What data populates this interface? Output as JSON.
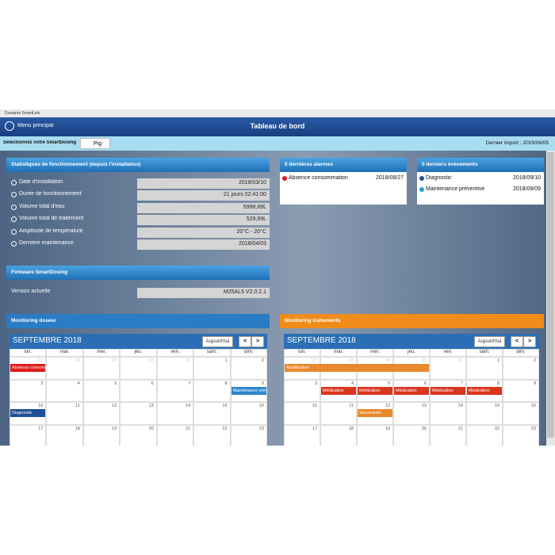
{
  "window_title": "Dosatron SmartLink",
  "header": {
    "menu": "Menu principal",
    "title": "Tableau de bord"
  },
  "selector": {
    "label": "Sélectionnez votre SmartDosing",
    "value": "Pig",
    "last_import": "Dernier import : 2019/06/05"
  },
  "stats": {
    "title": "Statistiques de fonctionnement (depuis l'installation)",
    "rows": [
      [
        "Date d'installation",
        "2018/03/10"
      ],
      [
        "Durée de fonctionnement",
        "21 jours 02:41:00"
      ],
      [
        "Volume total d'eau",
        "5998,69L"
      ],
      [
        "Volume total de traitement",
        "529,99L"
      ],
      [
        "Amplitude de température",
        "20°C - 20°C"
      ],
      [
        "Dernière maintenance",
        "2018/04/03"
      ]
    ]
  },
  "firmware": {
    "title": "Firmware SmartDosing",
    "rows": [
      [
        "Version actuelle",
        "M25AL5 V2.0.2.1"
      ]
    ]
  },
  "alarms": {
    "title": "5 dernières alarmes",
    "rows": [
      {
        "label": "Absence consommation",
        "date": "2018/08/27",
        "color": "#e01b1b"
      }
    ]
  },
  "events": {
    "title": "5 derniers événements",
    "rows": [
      {
        "label": "Diagnostic",
        "date": "2018/09/10",
        "color": "#1f4f96"
      },
      {
        "label": "Maintenance préventive",
        "date": "2018/09/09",
        "color": "#2f9bd6"
      }
    ]
  },
  "calendars": [
    {
      "title": "Monitoring doseur",
      "header_color": "#2a7cc4",
      "month": "SEPTEMBRE 2018",
      "today": "Aujourd'hui",
      "prev": "<",
      "next": ">",
      "weekdays": [
        "lun.",
        "mar.",
        "mer.",
        "jeu.",
        "ven.",
        "sam.",
        "dim."
      ],
      "weeks": [
        {
          "days": [
            27,
            28,
            29,
            30,
            31,
            1,
            2
          ],
          "events": [
            {
              "label": "Absence consomm",
              "start": 27,
              "end": 27,
              "color": "#e01b1b"
            }
          ]
        },
        {
          "days": [
            3,
            4,
            5,
            6,
            7,
            8,
            9
          ],
          "events": [
            {
              "label": "Maintenance prév",
              "start": 9,
              "end": 9,
              "color": "#2f86c9"
            }
          ]
        },
        {
          "days": [
            10,
            11,
            12,
            13,
            14,
            15,
            16
          ],
          "events": [
            {
              "label": "Diagnostic",
              "start": 10,
              "end": 10,
              "color": "#1f4f96"
            }
          ]
        },
        {
          "days": [
            17,
            18,
            19,
            20,
            21,
            22,
            23
          ],
          "events": []
        }
      ]
    },
    {
      "title": "Monitoring traitements",
      "header_color": "#f08c1a",
      "month": "SEPTEMBRE 2018",
      "today": "Aujourd'hui",
      "prev": "<",
      "next": ">",
      "weekdays": [
        "lun.",
        "mar.",
        "mer.",
        "jeu.",
        "ven.",
        "sam.",
        "dim."
      ],
      "weeks": [
        {
          "days": [
            27,
            28,
            29,
            30,
            31,
            1,
            2
          ],
          "events": [
            {
              "label": "Acidification",
              "start": 27,
              "end": 30,
              "color": "#e8892a"
            }
          ]
        },
        {
          "days": [
            3,
            4,
            5,
            6,
            7,
            8,
            9
          ],
          "events": [
            {
              "label": "Médication",
              "start": 4,
              "end": 4,
              "color": "#d9361e"
            },
            {
              "label": "Médication",
              "start": 5,
              "end": 5,
              "color": "#d9361e"
            },
            {
              "label": "Médication",
              "start": 6,
              "end": 6,
              "color": "#d9361e"
            },
            {
              "label": "Médication",
              "start": 7,
              "end": 7,
              "color": "#d9361e"
            },
            {
              "label": "Médication",
              "start": 8,
              "end": 8,
              "color": "#d9361e"
            }
          ]
        },
        {
          "days": [
            10,
            11,
            12,
            13,
            14,
            15,
            16
          ],
          "events": [
            {
              "label": "Vaccination",
              "start": 12,
              "end": 12,
              "color": "#e8892a"
            }
          ]
        },
        {
          "days": [
            17,
            18,
            19,
            20,
            21,
            22,
            23
          ],
          "events": []
        }
      ]
    }
  ]
}
